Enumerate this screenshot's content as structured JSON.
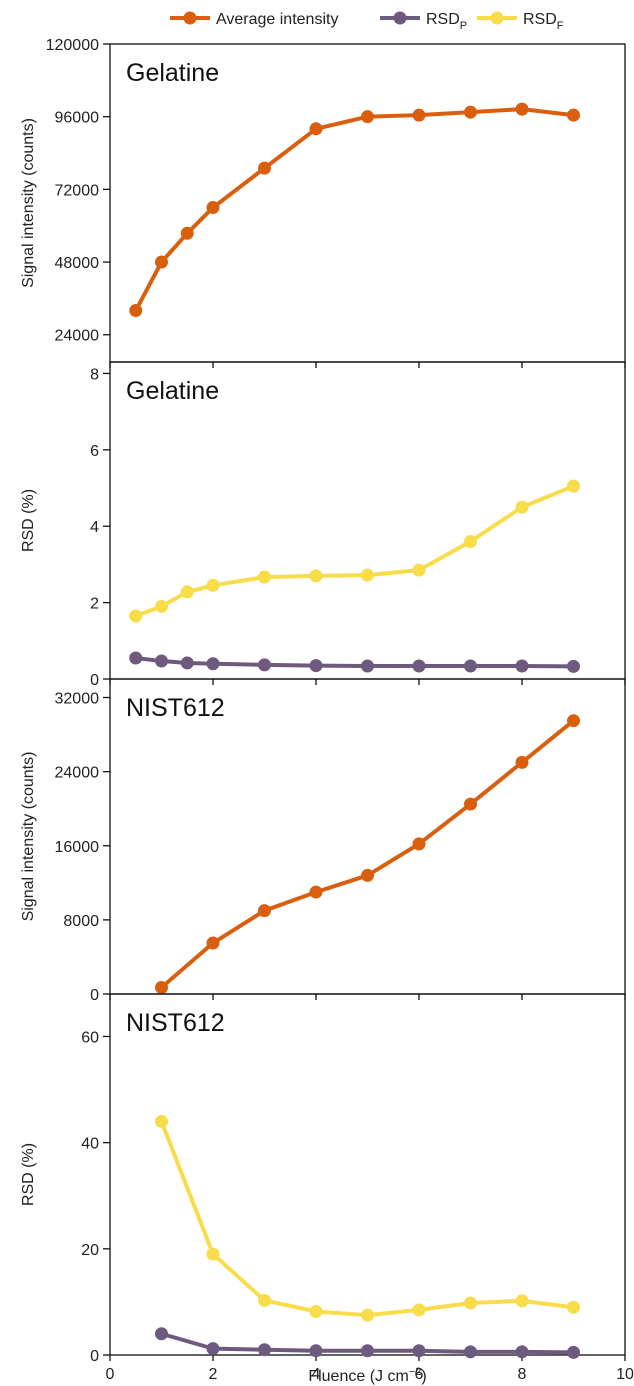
{
  "chart_data": {
    "type": "line",
    "legend": {
      "placement": "top",
      "entries": [
        {
          "key": "avg",
          "label": "Average intensity",
          "sub": "",
          "color": "#D95F0E"
        },
        {
          "key": "rsdp",
          "label": "RSD",
          "sub": "P",
          "color": "#6E5A7E"
        },
        {
          "key": "rsdf",
          "label": "RSD",
          "sub": "F",
          "color": "#F9DC4A"
        }
      ]
    },
    "xlabel": {
      "main": "Fluence (J cm",
      "sup": "−2",
      "close": ")"
    },
    "xlim": [
      0,
      10
    ],
    "xticks": [
      0,
      2,
      4,
      6,
      8,
      10
    ],
    "panels": [
      {
        "label": "Gelatine",
        "ylabel": "Signal intensity (counts)",
        "ylim": [
          15000,
          120000
        ],
        "yticks": [
          24000,
          48000,
          72000,
          96000,
          120000
        ],
        "series": [
          {
            "key": "avg",
            "color": "#D95F0E",
            "x": [
              0.5,
              1,
              1.5,
              2,
              3,
              4,
              5,
              6,
              7,
              8,
              9
            ],
            "y": [
              32000,
              48000,
              57500,
              66000,
              79000,
              92000,
              96000,
              96500,
              97500,
              98500,
              96500
            ]
          }
        ]
      },
      {
        "label": "Gelatine",
        "ylabel": "RSD (%)",
        "ylim": [
          0,
          8.3
        ],
        "yticks": [
          0,
          2,
          4,
          6,
          8
        ],
        "series": [
          {
            "key": "rsdf",
            "color": "#F9DC4A",
            "x": [
              0.5,
              1,
              1.5,
              2,
              3,
              4,
              5,
              6,
              7,
              8,
              9
            ],
            "y": [
              1.65,
              1.9,
              2.28,
              2.45,
              2.67,
              2.7,
              2.72,
              2.85,
              3.6,
              4.5,
              5.05
            ]
          },
          {
            "key": "rsdp",
            "color": "#6E5A7E",
            "x": [
              0.5,
              1,
              1.5,
              2,
              3,
              4,
              5,
              6,
              7,
              8,
              9
            ],
            "y": [
              0.55,
              0.47,
              0.42,
              0.4,
              0.37,
              0.35,
              0.34,
              0.34,
              0.34,
              0.34,
              0.33
            ]
          }
        ]
      },
      {
        "label": "NIST612",
        "ylabel": "Signal intensity (counts)",
        "ylim": [
          0,
          34000
        ],
        "yticks": [
          0,
          8000,
          16000,
          24000,
          32000
        ],
        "series": [
          {
            "key": "avg",
            "color": "#D95F0E",
            "x": [
              1,
              2,
              3,
              4,
              5,
              6,
              7,
              8,
              9
            ],
            "y": [
              700,
              5500,
              9000,
              11000,
              12800,
              16200,
              20500,
              25000,
              29500
            ]
          }
        ]
      },
      {
        "label": "NIST612",
        "ylabel": "RSD (%)",
        "ylim": [
          0,
          68
        ],
        "yticks": [
          0,
          20,
          40,
          60
        ],
        "series": [
          {
            "key": "rsdf",
            "color": "#F9DC4A",
            "x": [
              1,
              2,
              3,
              4,
              5,
              6,
              7,
              8,
              9
            ],
            "y": [
              44,
              19,
              10.3,
              8.2,
              7.5,
              8.5,
              9.8,
              10.2,
              9
            ]
          },
          {
            "key": "rsdp",
            "color": "#6E5A7E",
            "x": [
              1,
              2,
              3,
              4,
              5,
              6,
              7,
              8,
              9
            ],
            "y": [
              4,
              1.2,
              1,
              0.8,
              0.8,
              0.8,
              0.6,
              0.6,
              0.5
            ]
          }
        ]
      }
    ]
  }
}
